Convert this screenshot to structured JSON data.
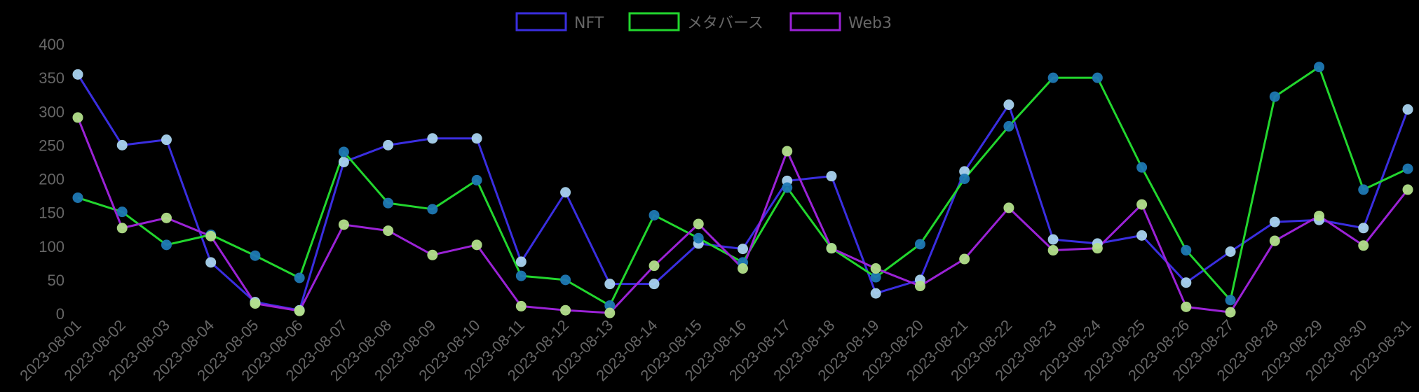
{
  "chart_data": {
    "type": "line",
    "title": "",
    "xlabel": "",
    "ylabel": "",
    "ylim": [
      0,
      400
    ],
    "y_ticks": [
      0,
      50,
      100,
      150,
      200,
      250,
      300,
      350,
      400
    ],
    "grid": false,
    "legend_position": "top",
    "categories": [
      "2023-08-01",
      "2023-08-02",
      "2023-08-03",
      "2023-08-04",
      "2023-08-05",
      "2023-08-06",
      "2023-08-07",
      "2023-08-08",
      "2023-08-09",
      "2023-08-10",
      "2023-08-11",
      "2023-08-12",
      "2023-08-13",
      "2023-08-14",
      "2023-08-15",
      "2023-08-16",
      "2023-08-17",
      "2023-08-18",
      "2023-08-19",
      "2023-08-20",
      "2023-08-21",
      "2023-08-22",
      "2023-08-23",
      "2023-08-24",
      "2023-08-25",
      "2023-08-26",
      "2023-08-27",
      "2023-08-28",
      "2023-08-29",
      "2023-08-30",
      "2023-08-31"
    ],
    "series": [
      {
        "name": "NFT",
        "color": "#3a2ee0",
        "point_color": "#a9d3ee",
        "values": [
          355,
          250,
          258,
          76,
          17,
          5,
          225,
          250,
          260,
          260,
          77,
          180,
          44,
          44,
          104,
          96,
          197,
          204,
          30,
          50,
          211,
          310,
          110,
          104,
          116,
          46,
          92,
          136,
          139,
          127,
          303
        ]
      },
      {
        "name": "メタバース",
        "color": "#22d62e",
        "point_color": "#1f78b4",
        "values": [
          172,
          151,
          102,
          117,
          86,
          53,
          240,
          164,
          155,
          198,
          56,
          50,
          12,
          146,
          112,
          76,
          187,
          97,
          54,
          103,
          200,
          278,
          350,
          350,
          217,
          94,
          20,
          322,
          366,
          184,
          215
        ]
      },
      {
        "name": "Web3",
        "color": "#9b22d6",
        "point_color": "#b2df8a",
        "values": [
          291,
          127,
          142,
          115,
          15,
          4,
          132,
          123,
          87,
          102,
          11,
          5,
          1,
          71,
          133,
          67,
          241,
          97,
          67,
          41,
          81,
          157,
          94,
          97,
          162,
          10,
          2,
          108,
          145,
          101,
          184
        ]
      }
    ]
  },
  "legend": {
    "items": [
      {
        "label": "NFT",
        "color": "#3a2ee0"
      },
      {
        "label": "メタバース",
        "color": "#22d62e"
      },
      {
        "label": "Web3",
        "color": "#9b22d6"
      }
    ]
  },
  "colors": {
    "background": "#000000",
    "tick_text": "#666666"
  }
}
